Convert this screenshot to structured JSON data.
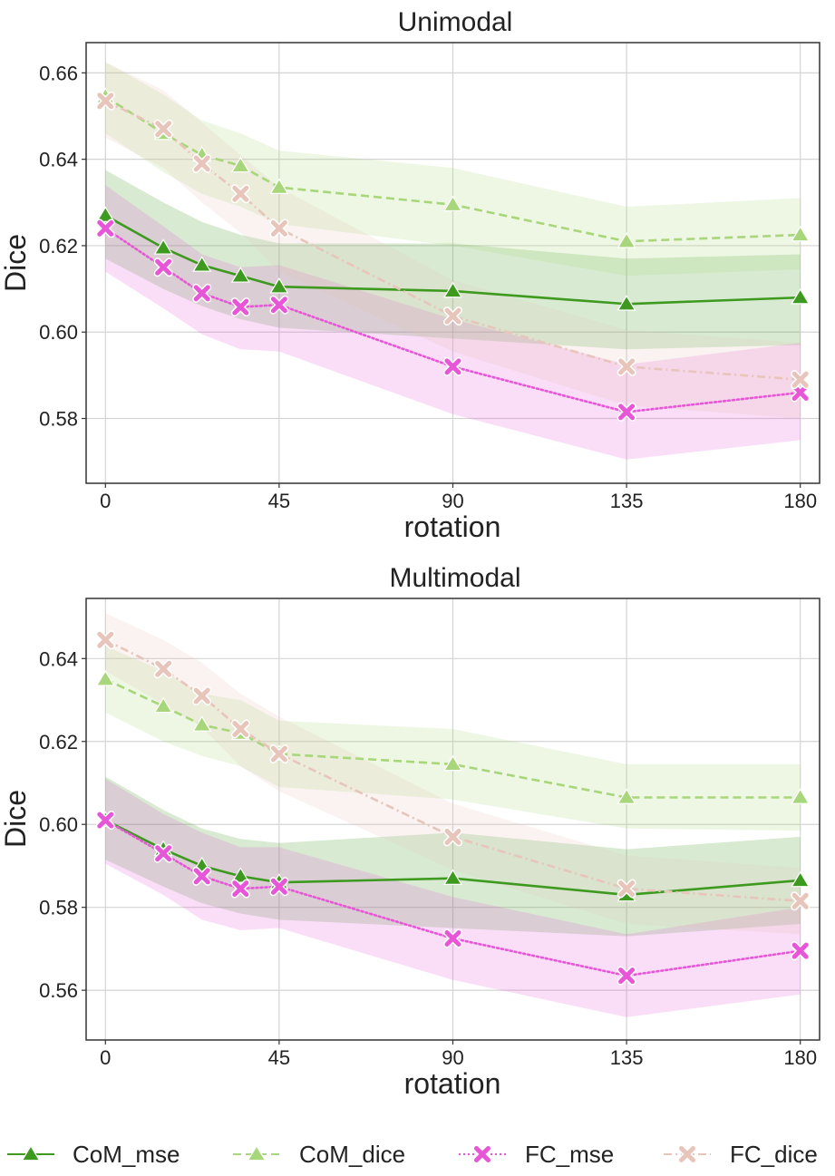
{
  "chart_data": [
    {
      "type": "line",
      "title": "Unimodal",
      "xlabel": "rotation",
      "ylabel": "Dice",
      "xlim": [
        -5,
        185
      ],
      "ylim": [
        0.565,
        0.667
      ],
      "xticks": [
        0,
        45,
        90,
        135,
        180
      ],
      "xtick_labels": [
        "0",
        "45",
        "90",
        "135",
        "180"
      ],
      "yticks": [
        0.58,
        0.6,
        0.62,
        0.64,
        0.66
      ],
      "ytick_labels": [
        "0.58",
        "0.60",
        "0.62",
        "0.64",
        "0.66"
      ],
      "grid": true,
      "x": [
        0,
        15,
        25,
        35,
        45,
        90,
        135,
        180
      ],
      "series": [
        {
          "name": "CoM_mse",
          "color": "#3d9a1f",
          "marker": "triangle",
          "dash": "solid",
          "values": [
            0.627,
            0.6195,
            0.6155,
            0.613,
            0.6105,
            0.6095,
            0.6065,
            0.608
          ],
          "lower": [
            0.617,
            0.61,
            0.606,
            0.603,
            0.601,
            0.5985,
            0.596,
            0.597
          ],
          "upper": [
            0.6375,
            0.63,
            0.6255,
            0.6225,
            0.6205,
            0.6205,
            0.617,
            0.618
          ]
        },
        {
          "name": "CoM_dice",
          "color": "#a8d67a",
          "marker": "triangle",
          "dash": "dashed",
          "values": [
            0.6545,
            0.646,
            0.641,
            0.6385,
            0.6335,
            0.6295,
            0.621,
            0.6225
          ],
          "lower": [
            0.646,
            0.637,
            0.632,
            0.629,
            0.625,
            0.62,
            0.613,
            0.6145
          ],
          "upper": [
            0.6625,
            0.655,
            0.649,
            0.646,
            0.642,
            0.638,
            0.629,
            0.631
          ]
        },
        {
          "name": "FC_mse",
          "color": "#e856d8",
          "marker": "x",
          "dash": "dotted",
          "values": [
            0.624,
            0.615,
            0.609,
            0.6058,
            0.6063,
            0.592,
            0.5815,
            0.586
          ],
          "lower": [
            0.614,
            0.6055,
            0.5995,
            0.596,
            0.5955,
            0.581,
            0.5705,
            0.575
          ],
          "upper": [
            0.634,
            0.6245,
            0.618,
            0.615,
            0.6155,
            0.603,
            0.5925,
            0.5975
          ]
        },
        {
          "name": "FC_dice",
          "color": "#e8c5bb",
          "marker": "x",
          "dash": "dashdot",
          "values": [
            0.6535,
            0.647,
            0.639,
            0.632,
            0.624,
            0.6037,
            0.592,
            0.589
          ],
          "lower": [
            0.645,
            0.638,
            0.63,
            0.623,
            0.614,
            0.5955,
            0.583,
            0.58
          ],
          "upper": [
            0.6625,
            0.656,
            0.6485,
            0.641,
            0.6335,
            0.612,
            0.6005,
            0.5975
          ]
        }
      ]
    },
    {
      "type": "line",
      "title": "Multimodal",
      "xlabel": "rotation",
      "ylabel": "Dice",
      "xlim": [
        -5,
        185
      ],
      "ylim": [
        0.548,
        0.6545
      ],
      "xticks": [
        0,
        45,
        90,
        135,
        180
      ],
      "xtick_labels": [
        "0",
        "45",
        "90",
        "135",
        "180"
      ],
      "yticks": [
        0.56,
        0.58,
        0.6,
        0.62,
        0.64
      ],
      "ytick_labels": [
        "0.56",
        "0.58",
        "0.60",
        "0.62",
        "0.64"
      ],
      "grid": true,
      "x": [
        0,
        15,
        25,
        35,
        45,
        90,
        135,
        180
      ],
      "series": [
        {
          "name": "CoM_mse",
          "color": "#3d9a1f",
          "marker": "triangle",
          "dash": "solid",
          "values": [
            0.601,
            0.594,
            0.59,
            0.5875,
            0.586,
            0.587,
            0.583,
            0.5865
          ],
          "lower": [
            0.5915,
            0.585,
            0.581,
            0.5785,
            0.577,
            0.575,
            0.573,
            0.576
          ],
          "upper": [
            0.6115,
            0.6035,
            0.599,
            0.5965,
            0.5955,
            0.598,
            0.594,
            0.597
          ]
        },
        {
          "name": "CoM_dice",
          "color": "#a8d67a",
          "marker": "triangle",
          "dash": "dashed",
          "values": [
            0.635,
            0.6285,
            0.624,
            0.622,
            0.617,
            0.6145,
            0.6065,
            0.6065
          ],
          "lower": [
            0.627,
            0.62,
            0.6165,
            0.614,
            0.609,
            0.606,
            0.599,
            0.5985
          ],
          "upper": [
            0.643,
            0.637,
            0.6315,
            0.63,
            0.625,
            0.623,
            0.6145,
            0.6145
          ]
        },
        {
          "name": "FC_mse",
          "color": "#e856d8",
          "marker": "x",
          "dash": "dotted",
          "values": [
            0.601,
            0.593,
            0.5875,
            0.5845,
            0.585,
            0.5725,
            0.5635,
            0.5695
          ],
          "lower": [
            0.5905,
            0.583,
            0.577,
            0.5745,
            0.575,
            0.5625,
            0.5535,
            0.559
          ],
          "upper": [
            0.611,
            0.6025,
            0.598,
            0.5945,
            0.5945,
            0.5825,
            0.5735,
            0.58
          ]
        },
        {
          "name": "FC_dice",
          "color": "#e8c5bb",
          "marker": "x",
          "dash": "dashdot",
          "values": [
            0.6445,
            0.6375,
            0.631,
            0.623,
            0.617,
            0.597,
            0.5845,
            0.5815
          ],
          "lower": [
            0.637,
            0.629,
            0.6235,
            0.614,
            0.608,
            0.589,
            0.576,
            0.5735
          ],
          "upper": [
            0.651,
            0.6445,
            0.639,
            0.6315,
            0.626,
            0.605,
            0.5925,
            0.5895
          ]
        }
      ]
    }
  ],
  "legend": {
    "placement": "bottom",
    "entries": [
      {
        "label": "CoM_mse",
        "color": "#3d9a1f",
        "marker": "triangle",
        "dash": "solid"
      },
      {
        "label": "CoM_dice",
        "color": "#a8d67a",
        "marker": "triangle",
        "dash": "dashed"
      },
      {
        "label": "FC_mse",
        "color": "#e856d8",
        "marker": "x",
        "dash": "dotted"
      },
      {
        "label": "FC_dice",
        "color": "#e8c5bb",
        "marker": "x",
        "dash": "dashdot"
      }
    ]
  }
}
